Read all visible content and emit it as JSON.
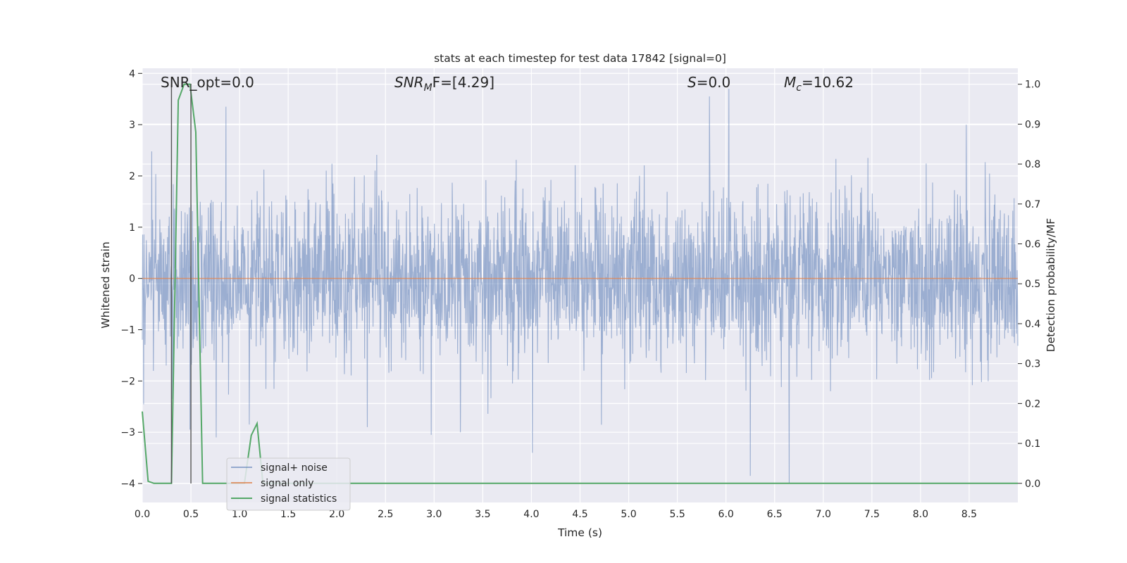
{
  "chart_data": {
    "type": "line",
    "title": "stats at each timestep for test data 17842 [signal=0]",
    "xlabel": "Time (s)",
    "ylabel": "Whitened strain",
    "y2label": "Detection probability/MF",
    "xlim": [
      0.0,
      9.0
    ],
    "ylim": [
      -4.37,
      4.1
    ],
    "y2lim": [
      -0.048,
      1.04
    ],
    "x_ticks": [
      "0.0",
      "0.5",
      "1.0",
      "1.5",
      "2.0",
      "2.5",
      "3.0",
      "3.5",
      "4.0",
      "4.5",
      "5.0",
      "5.5",
      "6.0",
      "6.5",
      "7.0",
      "7.5",
      "8.0",
      "8.5"
    ],
    "y_ticks": [
      "4",
      "3",
      "2",
      "1",
      "0",
      "−1",
      "−2",
      "−3",
      "−4"
    ],
    "y2_ticks": [
      "1.0",
      "0.9",
      "0.8",
      "0.7",
      "0.6",
      "0.5",
      "0.4",
      "0.3",
      "0.2",
      "0.1",
      "0.0"
    ],
    "grid": true,
    "legend_position": "lower-left",
    "annotations": {
      "snr_opt": "SNR_opt=0.0",
      "snr_mf_main": "SNR",
      "snr_mf_sub": "M",
      "snr_mf_rest": "F=[4.29]",
      "s_var": "S",
      "s_rest": "=0.0",
      "mc_main": "M",
      "mc_sub": "c",
      "mc_rest": "=10.62"
    },
    "vertical_markers": [
      0.3,
      0.5
    ],
    "series": [
      {
        "name": "signal+ noise",
        "color": "#4c72b0",
        "kind": "noise",
        "duration": 9.0,
        "sample_rate": 2048,
        "typical_range": [
          -2.5,
          2.5
        ],
        "notable_extremes": [
          {
            "x": 0.31,
            "y": -2.35
          },
          {
            "x": 0.49,
            "y": -2.95
          },
          {
            "x": 0.86,
            "y": 3.35
          },
          {
            "x": 0.76,
            "y": -3.1
          },
          {
            "x": 1.1,
            "y": -2.85
          },
          {
            "x": 2.97,
            "y": -3.05
          },
          {
            "x": 3.27,
            "y": -3.0
          },
          {
            "x": 4.01,
            "y": -3.4
          },
          {
            "x": 5.83,
            "y": 3.55
          },
          {
            "x": 6.03,
            "y": 3.7
          },
          {
            "x": 6.25,
            "y": -3.85
          },
          {
            "x": 6.65,
            "y": -4.0
          },
          {
            "x": 8.47,
            "y": 3.0
          }
        ]
      },
      {
        "name": "signal only",
        "color": "#dd8452",
        "x": [
          0.0,
          9.0
        ],
        "y": [
          0.0,
          0.0
        ]
      },
      {
        "name": "signal statistics",
        "color": "#55a868",
        "axis": "right",
        "x": [
          0.0,
          0.06,
          0.12,
          0.3,
          0.37,
          0.43,
          0.49,
          0.55,
          0.62,
          0.68,
          1.05,
          1.12,
          1.18,
          1.24,
          1.3,
          9.0
        ],
        "y": [
          0.18,
          0.005,
          0.0,
          0.0,
          0.96,
          1.0,
          1.0,
          0.88,
          0.0,
          0.0,
          0.0,
          0.12,
          0.15,
          0.0,
          0.0,
          0.0
        ]
      }
    ]
  }
}
